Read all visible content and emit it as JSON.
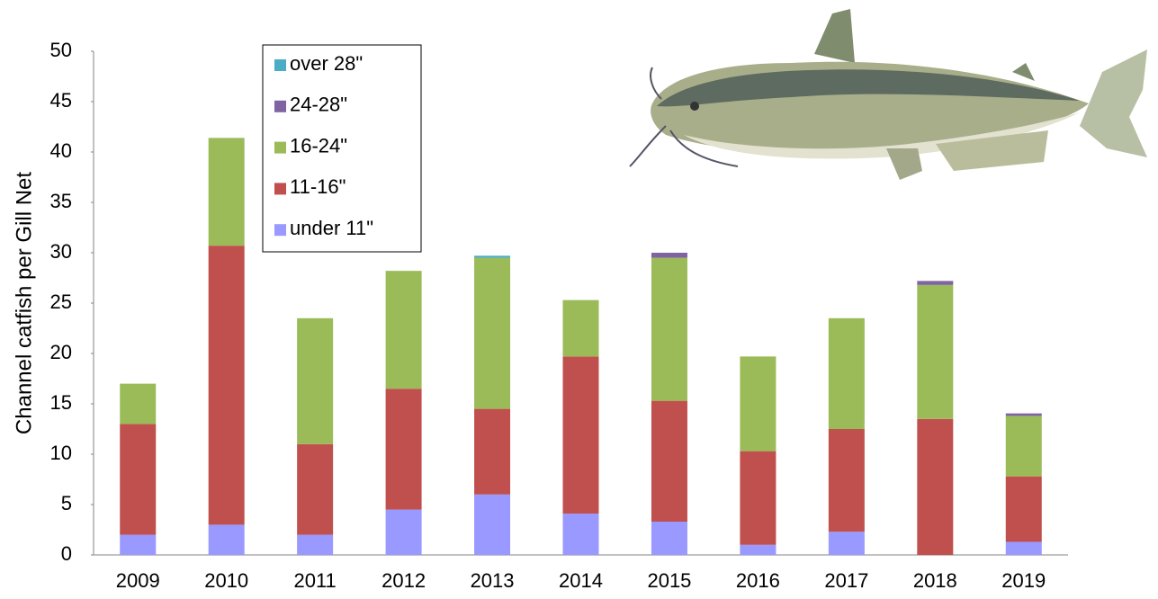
{
  "chart_data": {
    "type": "stacked-bar",
    "y_label": "Channel catfish per Gill Net",
    "categories": [
      "2009",
      "2010",
      "2011",
      "2012",
      "2013",
      "2014",
      "2015",
      "2016",
      "2017",
      "2018",
      "2019"
    ],
    "series": [
      {
        "name": "under 11\"",
        "color": "#9999ff",
        "values": [
          2,
          3,
          2,
          4.5,
          6,
          4.1,
          3.3,
          1,
          2.3,
          0,
          1.3
        ]
      },
      {
        "name": "11-16\"",
        "color": "#c0504d",
        "values": [
          11,
          27.7,
          9,
          12,
          8.5,
          15.6,
          12,
          9.3,
          10.2,
          13.5,
          6.5
        ]
      },
      {
        "name": "16-24\"",
        "color": "#9bbb59",
        "values": [
          4,
          10.7,
          12.5,
          11.7,
          15,
          5.6,
          14.2,
          9.4,
          11,
          13.3,
          6
        ]
      },
      {
        "name": "24-28\"",
        "color": "#8064a2",
        "values": [
          0,
          0,
          0,
          0,
          0,
          0,
          0.5,
          0,
          0,
          0.4,
          0.25
        ]
      },
      {
        "name": "over 28\"",
        "color": "#4bacc6",
        "values": [
          0,
          0,
          0,
          0,
          0.2,
          0,
          0,
          0,
          0,
          0,
          0
        ]
      }
    ],
    "ylim": [
      0,
      50
    ],
    "yticks": [
      0,
      5,
      10,
      15,
      20,
      25,
      30,
      35,
      40,
      45,
      50
    ]
  }
}
